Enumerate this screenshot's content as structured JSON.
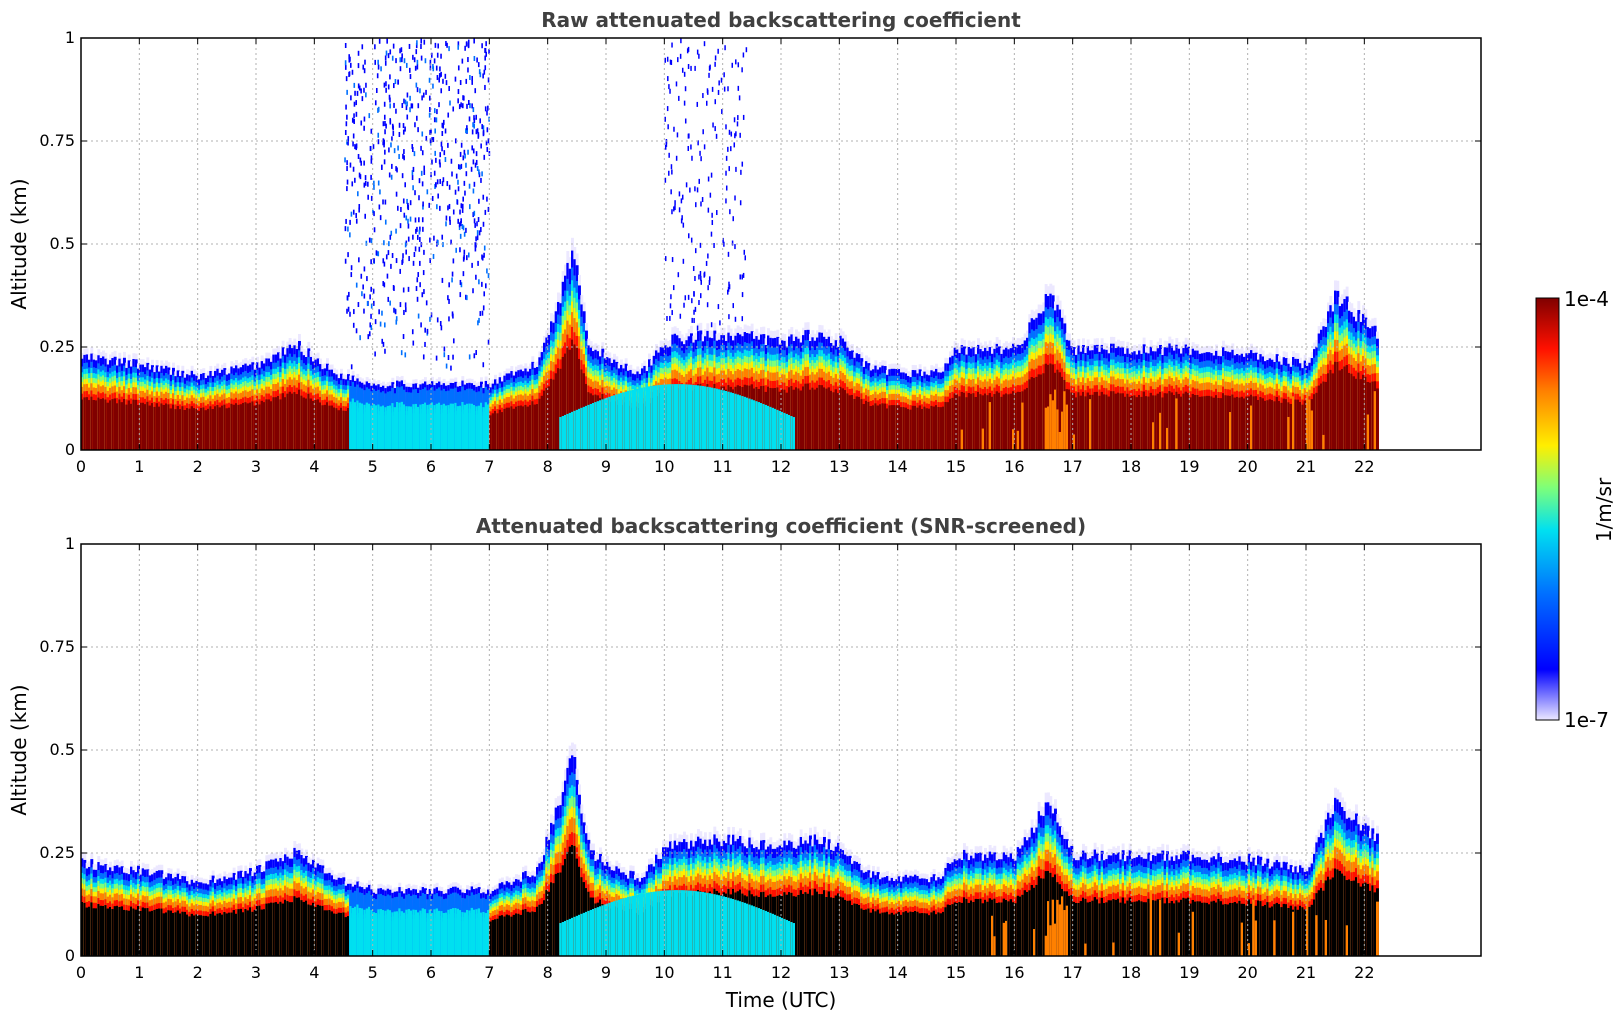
{
  "chart_data": [
    {
      "type": "heatmap",
      "title": "Raw attenuated backscattering coefficient",
      "xlabel": "",
      "ylabel": "Altitude (km)",
      "xlim": [
        0,
        24
      ],
      "ylim": [
        0,
        1
      ],
      "x_ticks": [
        "0",
        "1",
        "2",
        "3",
        "4",
        "5",
        "6",
        "7",
        "8",
        "9",
        "10",
        "11",
        "12",
        "13",
        "14",
        "15",
        "16",
        "17",
        "18",
        "19",
        "20",
        "21",
        "22"
      ],
      "y_ticks": [
        "0",
        "0.25",
        "0.5",
        "0.75",
        "1"
      ],
      "grid": true,
      "data_end_hour": 22.2,
      "cloud_top_km": [
        [
          0,
          0.24
        ],
        [
          1,
          0.22
        ],
        [
          2,
          0.19
        ],
        [
          3,
          0.22
        ],
        [
          3.7,
          0.27
        ],
        [
          4.3,
          0.2
        ],
        [
          5,
          0.17
        ],
        [
          6,
          0.17
        ],
        [
          7,
          0.17
        ],
        [
          7.8,
          0.22
        ],
        [
          8.2,
          0.4
        ],
        [
          8.4,
          0.52
        ],
        [
          8.7,
          0.27
        ],
        [
          9.2,
          0.22
        ],
        [
          9.6,
          0.2
        ],
        [
          10,
          0.28
        ],
        [
          11,
          0.3
        ],
        [
          12,
          0.28
        ],
        [
          12.5,
          0.3
        ],
        [
          13,
          0.28
        ],
        [
          13.5,
          0.21
        ],
        [
          14,
          0.2
        ],
        [
          14.7,
          0.2
        ],
        [
          15,
          0.26
        ],
        [
          16,
          0.26
        ],
        [
          16.6,
          0.4
        ],
        [
          17,
          0.26
        ],
        [
          18,
          0.26
        ],
        [
          19,
          0.26
        ],
        [
          20,
          0.25
        ],
        [
          21,
          0.22
        ],
        [
          21.5,
          0.4
        ],
        [
          22.2,
          0.3
        ]
      ],
      "noise_hours": [
        4.5,
        7.0
      ]
    },
    {
      "type": "heatmap",
      "title": "Attenuated backscattering coefficient (SNR-screened)",
      "xlabel": "Time (UTC)",
      "ylabel": "Altitude (km)",
      "xlim": [
        0,
        24
      ],
      "ylim": [
        0,
        1
      ],
      "x_ticks": [
        "0",
        "1",
        "2",
        "3",
        "4",
        "5",
        "6",
        "7",
        "8",
        "9",
        "10",
        "11",
        "12",
        "13",
        "14",
        "15",
        "16",
        "17",
        "18",
        "19",
        "20",
        "21",
        "22"
      ],
      "y_ticks": [
        "0",
        "0.25",
        "0.5",
        "0.75",
        "1"
      ],
      "grid": true,
      "data_end_hour": 22.2,
      "screened_fill": "black"
    }
  ],
  "colorbar": {
    "max_label": "1e-4",
    "min_label": "1e-7",
    "unit_label": "1/m/sr",
    "colors": [
      "#ece8ff",
      "#0000ff",
      "#0070ff",
      "#00e0f0",
      "#7dff7a",
      "#ffee00",
      "#ff8000",
      "#ff1000",
      "#800000"
    ]
  }
}
